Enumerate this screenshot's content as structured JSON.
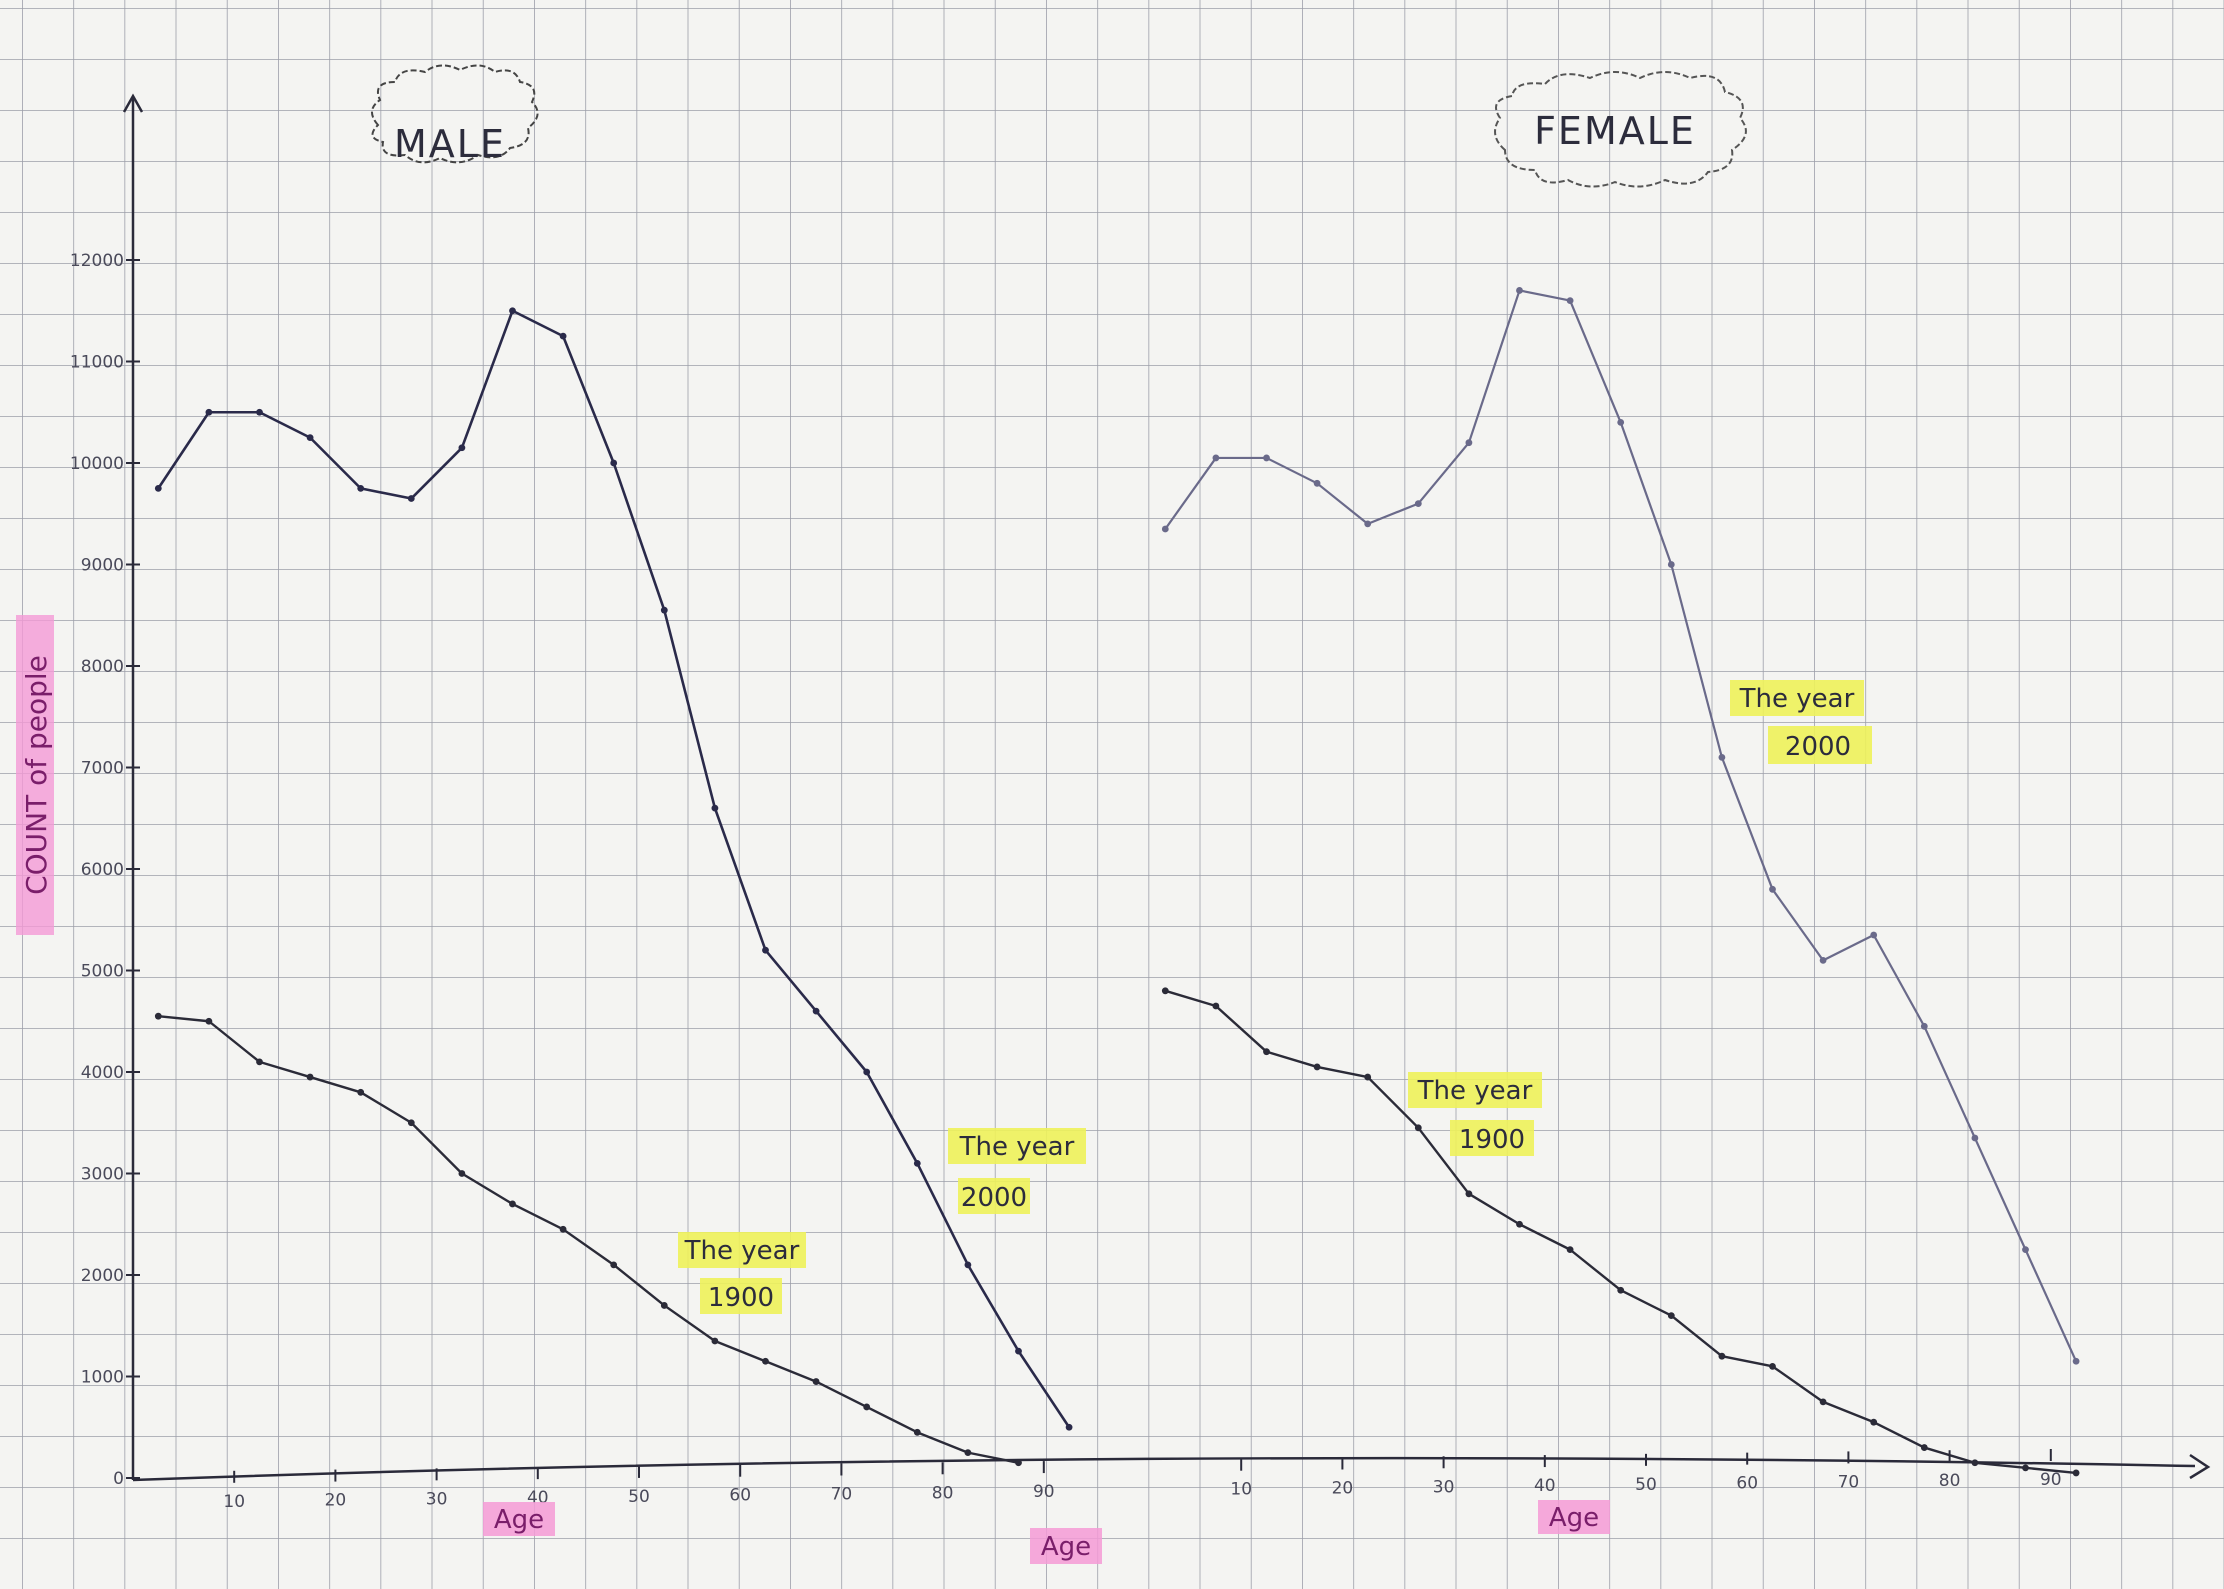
{
  "colors": {
    "paper": "#f4f4f2",
    "grid": "#8d8f9c",
    "axis": "#2a2a3a",
    "line_1900": "#2b2b38",
    "line_2000_male": "#2a2a4a",
    "line_2000_female": "#6a6a8a",
    "highlight_yellow": "#eef25a",
    "highlight_pink": "#f49ad6",
    "pink_text": "#7a1e6a"
  },
  "chart_data": [
    {
      "type": "line",
      "title": "MALE",
      "xlabel": "Age",
      "ylabel": "COUNT of people",
      "xlim": [
        0,
        95
      ],
      "ylim": [
        0,
        12000
      ],
      "x_ticks": [
        "10",
        "20",
        "30",
        "40",
        "50",
        "60",
        "70",
        "80",
        "90"
      ],
      "y_ticks": [
        "0",
        "1000",
        "2000",
        "3000",
        "4000",
        "5000",
        "6000",
        "7000",
        "8000",
        "9000",
        "10000",
        "11000",
        "12000"
      ],
      "grid": true,
      "series": [
        {
          "name": "The year 2000",
          "x": [
            2.5,
            7.5,
            12.5,
            17.5,
            22.5,
            27.5,
            32.5,
            37.5,
            42.5,
            47.5,
            52.5,
            57.5,
            62.5,
            67.5,
            72.5,
            77.5,
            82.5,
            87.5,
            92.5
          ],
          "y": [
            9750,
            10500,
            10500,
            10250,
            9750,
            9650,
            10150,
            11500,
            11250,
            10000,
            8550,
            6600,
            5200,
            4600,
            4000,
            3100,
            2100,
            1250,
            500
          ]
        },
        {
          "name": "The year 1900",
          "x": [
            2.5,
            7.5,
            12.5,
            17.5,
            22.5,
            27.5,
            32.5,
            37.5,
            42.5,
            47.5,
            52.5,
            57.5,
            62.5,
            67.5,
            72.5,
            77.5,
            82.5,
            87.5
          ],
          "y": [
            4550,
            4500,
            4100,
            3950,
            3800,
            3500,
            3000,
            2700,
            2450,
            2100,
            1700,
            1350,
            1150,
            950,
            700,
            450,
            250,
            150
          ]
        }
      ]
    },
    {
      "type": "line",
      "title": "FEMALE",
      "xlabel": "Age",
      "ylabel": "",
      "xlim": [
        0,
        95
      ],
      "ylim": [
        0,
        12000
      ],
      "x_ticks": [
        "10",
        "20",
        "30",
        "40",
        "50",
        "60",
        "70",
        "80",
        "90"
      ],
      "grid": true,
      "series": [
        {
          "name": "The year 2000",
          "x": [
            2.5,
            7.5,
            12.5,
            17.5,
            22.5,
            27.5,
            32.5,
            37.5,
            42.5,
            47.5,
            52.5,
            57.5,
            62.5,
            67.5,
            72.5,
            77.5,
            82.5,
            87.5,
            92.5
          ],
          "y": [
            9350,
            10050,
            10050,
            9800,
            9400,
            9600,
            10200,
            11700,
            11600,
            10400,
            9000,
            7100,
            5800,
            5100,
            5350,
            4450,
            3350,
            2250,
            1150
          ]
        },
        {
          "name": "The year 1900",
          "x": [
            2.5,
            7.5,
            12.5,
            17.5,
            22.5,
            27.5,
            32.5,
            37.5,
            42.5,
            47.5,
            52.5,
            57.5,
            62.5,
            67.5,
            72.5,
            77.5,
            82.5,
            87.5,
            92.5
          ],
          "y": [
            4800,
            4650,
            4200,
            4050,
            3950,
            3450,
            2800,
            2500,
            2250,
            1850,
            1600,
            1200,
            1100,
            750,
            550,
            300,
            150,
            100,
            50
          ]
        }
      ]
    }
  ],
  "annotations": {
    "male_1900": [
      "The year",
      "1900"
    ],
    "male_2000": [
      "The year",
      "2000"
    ],
    "female_1900": [
      "The year",
      "1900"
    ],
    "female_2000": [
      "The year",
      "2000"
    ]
  },
  "labels": {
    "y_axis": "COUNT of people",
    "age_left": "Age",
    "age_center": "Age",
    "age_right": "Age",
    "male_title": "MALE",
    "female_title": "FEMALE"
  }
}
